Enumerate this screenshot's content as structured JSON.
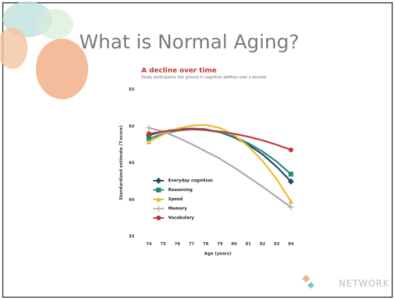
{
  "slide": {
    "title": "What is Normal Aging?",
    "logo": "NETWORK"
  },
  "chart_data": {
    "type": "line",
    "title": "A decline over time",
    "subtitle": "Study participants lost ground in cognitive abilities over a decade",
    "x_label": "Age (years)",
    "y_label": "Standardized estimate (T-score)",
    "categories": [
      "74",
      "75",
      "76",
      "77",
      "78",
      "79",
      "80",
      "81",
      "82",
      "83",
      "84"
    ],
    "ylim": [
      35,
      55
    ],
    "yticks": [
      35,
      40,
      45,
      50,
      55
    ],
    "legend": "left",
    "series": [
      {
        "name": "Everyday cognition",
        "color": "#1d4a6b",
        "marker": "diamond",
        "values": [
          48.8,
          49.3,
          49.6,
          49.7,
          49.6,
          49.2,
          48.5,
          47.5,
          46.2,
          44.5,
          42.5
        ]
      },
      {
        "name": "Reasoning",
        "color": "#23897a",
        "marker": "square",
        "values": [
          48.3,
          49.0,
          49.4,
          49.6,
          49.5,
          49.2,
          48.6,
          47.7,
          46.6,
          45.2,
          43.5
        ]
      },
      {
        "name": "Speed",
        "color": "#f0b62e",
        "marker": "triangle",
        "values": [
          47.9,
          48.9,
          49.7,
          50.1,
          50.2,
          49.8,
          48.8,
          47.3,
          45.3,
          42.8,
          39.8
        ]
      },
      {
        "name": "Memory",
        "color": "#a9a9ad",
        "marker": "plus",
        "values": [
          49.8,
          49.3,
          48.5,
          47.6,
          46.6,
          45.6,
          44.4,
          43.1,
          41.8,
          40.4,
          39.0
        ]
      },
      {
        "name": "Vocabulary",
        "color": "#c0393a",
        "marker": "circle",
        "values": [
          49.0,
          49.3,
          49.5,
          49.6,
          49.5,
          49.3,
          49.0,
          48.6,
          48.1,
          47.5,
          46.8
        ]
      }
    ]
  }
}
